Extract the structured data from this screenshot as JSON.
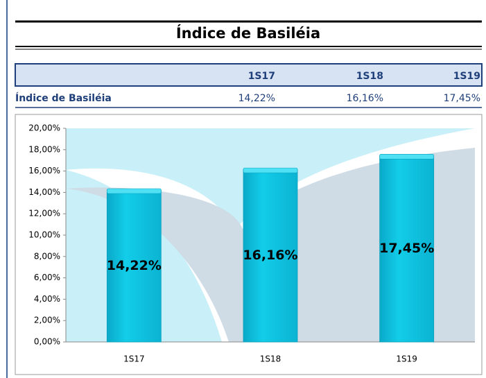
{
  "title": "Índice de Basiléia",
  "table": {
    "columns": [
      "1S17",
      "1S18",
      "1S19"
    ],
    "rows": [
      {
        "label": "Índice de Basiléia",
        "cells": [
          "14,22%",
          "16,16%",
          "17,45%"
        ]
      }
    ]
  },
  "chart_data": {
    "type": "bar",
    "categories": [
      "1S17",
      "1S18",
      "1S19"
    ],
    "values": [
      14.22,
      16.16,
      17.45
    ],
    "value_labels": [
      "14,22%",
      "16,16%",
      "17,45%"
    ],
    "color": "#12cde9",
    "ylim": [
      0,
      20
    ],
    "yticks": [
      {
        "value": 0,
        "label": "0,00%"
      },
      {
        "value": 2,
        "label": "2,00%"
      },
      {
        "value": 4,
        "label": "4,00%"
      },
      {
        "value": 6,
        "label": "6,00%"
      },
      {
        "value": 8,
        "label": "8,00%"
      },
      {
        "value": 10,
        "label": "10,00%"
      },
      {
        "value": 12,
        "label": "12,00%"
      },
      {
        "value": 14,
        "label": "14,00%"
      },
      {
        "value": 16,
        "label": "16,00%"
      },
      {
        "value": 18,
        "label": "18,00%"
      },
      {
        "value": 20,
        "label": "20,00%"
      }
    ]
  }
}
